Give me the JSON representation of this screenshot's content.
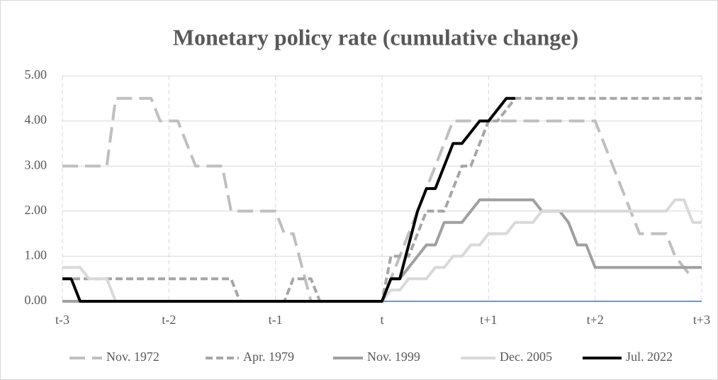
{
  "chart_data": {
    "type": "line",
    "title": "Monetary policy rate (cumulative change)",
    "x": [
      -36,
      -35,
      -34,
      -33,
      -32,
      -31,
      -30,
      -29,
      -28,
      -27,
      -26,
      -25,
      -24,
      -23,
      -22,
      -21,
      -20,
      -19,
      -18,
      -17,
      -16,
      -15,
      -14,
      -13,
      -12,
      -11,
      -10,
      -9,
      -8,
      -7,
      -6,
      -5,
      -4,
      -3,
      -2,
      -1,
      0,
      1,
      2,
      3,
      4,
      5,
      6,
      7,
      8,
      9,
      10,
      11,
      12,
      13,
      14,
      15,
      16,
      17,
      18,
      19,
      20,
      21,
      22,
      23,
      24,
      25,
      26,
      27,
      28,
      29,
      30,
      31,
      32,
      33,
      34,
      35,
      36
    ],
    "xlim": [
      -36,
      36
    ],
    "xticks": [
      {
        "value": -36,
        "label": "t-3"
      },
      {
        "value": -24,
        "label": "t-2"
      },
      {
        "value": -12,
        "label": "t-1"
      },
      {
        "value": 0,
        "label": "t"
      },
      {
        "value": 12,
        "label": "t+1"
      },
      {
        "value": 24,
        "label": "t+2"
      },
      {
        "value": 36,
        "label": "t+3"
      }
    ],
    "ylim": [
      0,
      5
    ],
    "yticks": [
      {
        "value": 0,
        "label": "0.00"
      },
      {
        "value": 1,
        "label": "1.00"
      },
      {
        "value": 2,
        "label": "2.00"
      },
      {
        "value": 3,
        "label": "3.00"
      },
      {
        "value": 4,
        "label": "4.00"
      },
      {
        "value": 5,
        "label": "5.00"
      }
    ],
    "grid": true,
    "legend": "bottom",
    "series": [
      {
        "name": "Nov. 1972",
        "color": "#bfbfbf",
        "dash": "long",
        "values": [
          3,
          3,
          3,
          3,
          3,
          3,
          4.5,
          4.5,
          4.5,
          4.5,
          4.5,
          4,
          4,
          4,
          3.5,
          3,
          3,
          3,
          3,
          2,
          2,
          2,
          2,
          2,
          2,
          1.5,
          1.5,
          0.75,
          0,
          0,
          0,
          0,
          0,
          0,
          0,
          0,
          0,
          0.5,
          1,
          1.5,
          2,
          2.5,
          3,
          3.5,
          4,
          4,
          4,
          4,
          4,
          4,
          4,
          4,
          4,
          4,
          4,
          4,
          4,
          4,
          4,
          4,
          4,
          3.5,
          3,
          2.5,
          2,
          1.5,
          1.5,
          1.5,
          1.5,
          1,
          0.75,
          0.5,
          null
        ]
      },
      {
        "name": "Apr. 1979",
        "color": "#a6a6a6",
        "dash": "short",
        "values": [
          0.5,
          0.5,
          0.5,
          0.5,
          0.5,
          0.5,
          0.5,
          0.5,
          0.5,
          0.5,
          0.5,
          0.5,
          0.5,
          0.5,
          0.5,
          0.5,
          0.5,
          0.5,
          0.5,
          0.5,
          0,
          0,
          0,
          0,
          0,
          0,
          0.5,
          0.5,
          0.5,
          0,
          0,
          0,
          0,
          0,
          0,
          0,
          0,
          1,
          1,
          1,
          1.5,
          2,
          2,
          2,
          2.5,
          3,
          3,
          3.5,
          4,
          4,
          4.25,
          4.5,
          4.5,
          4.5,
          4.5,
          4.5,
          4.5,
          4.5,
          4.5,
          4.5,
          4.5,
          4.5,
          4.5,
          4.5,
          4.5,
          4.5,
          4.5,
          4.5,
          4.5,
          4.5,
          4.5,
          4.5,
          4.5
        ]
      },
      {
        "name": "Nov. 1999",
        "color": "#a0a0a0",
        "dash": "solid",
        "values": [
          0,
          0,
          0,
          0,
          0,
          0,
          0,
          0,
          0,
          0,
          0,
          0,
          0,
          0,
          0,
          0,
          0,
          0,
          0,
          0,
          0,
          0,
          0,
          0,
          0,
          0,
          0,
          0,
          0,
          0,
          0,
          0,
          0,
          0,
          0,
          0,
          0,
          0.5,
          0.5,
          0.75,
          1,
          1.25,
          1.25,
          1.75,
          1.75,
          1.75,
          2,
          2.25,
          2.25,
          2.25,
          2.25,
          2.25,
          2.25,
          2.25,
          2,
          2,
          2,
          1.75,
          1.25,
          1.25,
          0.75,
          0.75,
          0.75,
          0.75,
          0.75,
          0.75,
          0.75,
          0.75,
          0.75,
          0.75,
          0.75,
          0.75,
          0.75
        ]
      },
      {
        "name": "Dec. 2005",
        "color": "#d9d9d9",
        "dash": "solid",
        "values": [
          0.75,
          0.75,
          0.75,
          0.5,
          0.5,
          0.5,
          0,
          0,
          0,
          0,
          0,
          0,
          0,
          0,
          0,
          0,
          0,
          0,
          0,
          0,
          0,
          0,
          0,
          0,
          0,
          0,
          0,
          0,
          0,
          0,
          0,
          0,
          0,
          0,
          0,
          0,
          0,
          0.25,
          0.25,
          0.5,
          0.5,
          0.5,
          0.75,
          0.75,
          1,
          1,
          1.25,
          1.25,
          1.5,
          1.5,
          1.5,
          1.75,
          1.75,
          1.75,
          2,
          2,
          2,
          2,
          2,
          2,
          2,
          2,
          2,
          2,
          2,
          2,
          2,
          2,
          2,
          2.25,
          2.25,
          1.75,
          1.75
        ]
      },
      {
        "name": "Jul. 2022",
        "color": "#000000",
        "dash": "solid",
        "values": [
          0.5,
          0.5,
          0,
          0,
          0,
          0,
          0,
          0,
          0,
          0,
          0,
          0,
          0,
          0,
          0,
          0,
          0,
          0,
          0,
          0,
          0,
          0,
          0,
          0,
          0,
          0,
          0,
          0,
          0,
          0,
          0,
          0,
          0,
          0,
          0,
          0,
          0,
          0.5,
          0.5,
          1.25,
          2,
          2.5,
          2.5,
          3,
          3.5,
          3.5,
          3.75,
          4,
          4,
          4.25,
          4.5,
          4.5,
          null,
          null,
          null,
          null,
          null,
          null,
          null,
          null,
          null,
          null,
          null,
          null,
          null,
          null,
          null,
          null,
          null,
          null,
          null,
          null,
          null
        ]
      }
    ]
  }
}
